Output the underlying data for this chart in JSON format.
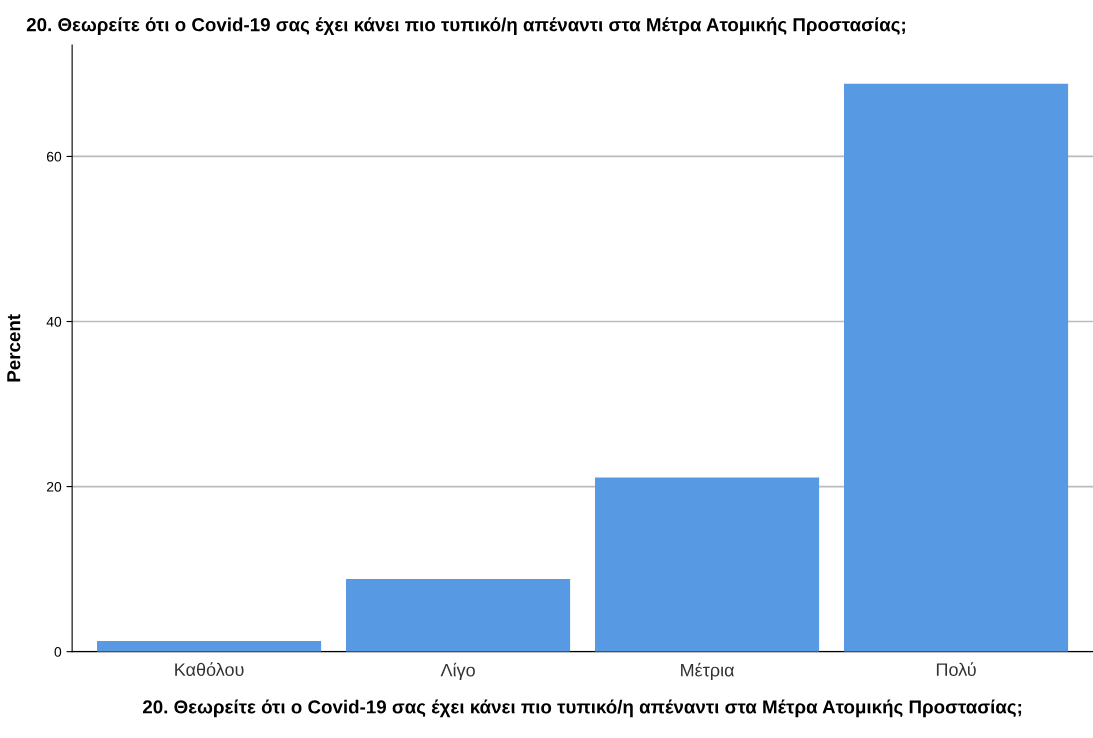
{
  "chart_data": {
    "type": "bar",
    "title": "20. Θεωρείτε ότι ο Covid-19 σας έχει κάνει πιο τυπικό/η απέναντι στα Μέτρα Ατομικής Προστασίας;",
    "xlabel": "20. Θεωρείτε ότι ο Covid-19 σας έχει κάνει πιο τυπικό/η απέναντι στα Μέτρα Ατομικής Προστασίας;",
    "ylabel": "Percent",
    "categories": [
      "Καθόλου",
      "Λίγο",
      "Μέτρια",
      "Πολύ"
    ],
    "values": [
      1.3,
      8.8,
      21.1,
      68.8
    ],
    "color": "#5899e4",
    "ylim": [
      0,
      73.5
    ],
    "yticks": [
      0,
      20,
      40,
      60
    ],
    "grid": "y"
  }
}
